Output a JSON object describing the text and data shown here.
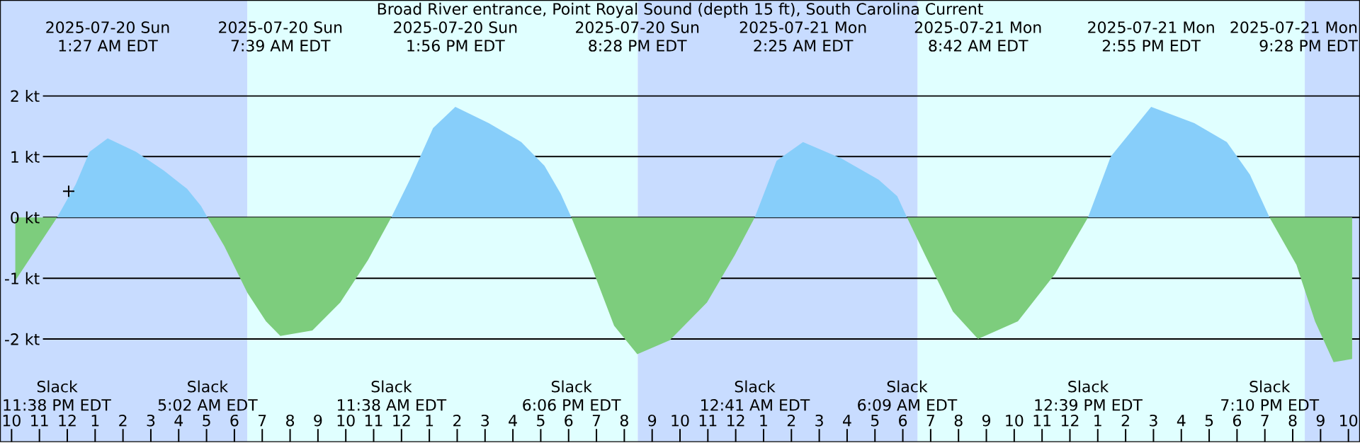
{
  "chart_data": {
    "type": "area",
    "title": "Broad River entrance, Point Royal Sound (depth 15 ft), South Carolina Current",
    "xlim": [
      "2025-07-19T21:36",
      "2025-07-21T22:24"
    ],
    "ylim": [
      -3.69,
      3.57
    ],
    "grid": "y",
    "yticks": [
      {
        "value": 2,
        "label": "2 kt"
      },
      {
        "value": 1,
        "label": "1 kt"
      },
      {
        "value": 0,
        "label": "0 kt"
      },
      {
        "value": -1,
        "label": "-1 kt"
      },
      {
        "value": -2,
        "label": "-2 kt"
      }
    ],
    "xticks": [
      {
        "value": "2025-07-19T22:00",
        "label": "10"
      },
      {
        "value": "2025-07-19T23:00",
        "label": "11"
      },
      {
        "value": "2025-07-20T00:00",
        "label": "12"
      },
      {
        "value": "2025-07-20T01:00",
        "label": "1"
      },
      {
        "value": "2025-07-20T02:00",
        "label": "2"
      },
      {
        "value": "2025-07-20T03:00",
        "label": "3"
      },
      {
        "value": "2025-07-20T04:00",
        "label": "4"
      },
      {
        "value": "2025-07-20T05:00",
        "label": "5"
      },
      {
        "value": "2025-07-20T06:00",
        "label": "6"
      },
      {
        "value": "2025-07-20T07:00",
        "label": "7"
      },
      {
        "value": "2025-07-20T08:00",
        "label": "8"
      },
      {
        "value": "2025-07-20T09:00",
        "label": "9"
      },
      {
        "value": "2025-07-20T10:00",
        "label": "10"
      },
      {
        "value": "2025-07-20T11:00",
        "label": "11"
      },
      {
        "value": "2025-07-20T12:00",
        "label": "12"
      },
      {
        "value": "2025-07-20T13:00",
        "label": "1"
      },
      {
        "value": "2025-07-20T14:00",
        "label": "2"
      },
      {
        "value": "2025-07-20T15:00",
        "label": "3"
      },
      {
        "value": "2025-07-20T16:00",
        "label": "4"
      },
      {
        "value": "2025-07-20T17:00",
        "label": "5"
      },
      {
        "value": "2025-07-20T18:00",
        "label": "6"
      },
      {
        "value": "2025-07-20T19:00",
        "label": "7"
      },
      {
        "value": "2025-07-20T20:00",
        "label": "8"
      },
      {
        "value": "2025-07-20T21:00",
        "label": "9"
      },
      {
        "value": "2025-07-20T22:00",
        "label": "10"
      },
      {
        "value": "2025-07-20T23:00",
        "label": "11"
      },
      {
        "value": "2025-07-21T00:00",
        "label": "12"
      },
      {
        "value": "2025-07-21T01:00",
        "label": "1"
      },
      {
        "value": "2025-07-21T02:00",
        "label": "2"
      },
      {
        "value": "2025-07-21T03:00",
        "label": "3"
      },
      {
        "value": "2025-07-21T04:00",
        "label": "4"
      },
      {
        "value": "2025-07-21T05:00",
        "label": "5"
      },
      {
        "value": "2025-07-21T06:00",
        "label": "6"
      },
      {
        "value": "2025-07-21T07:00",
        "label": "7"
      },
      {
        "value": "2025-07-21T08:00",
        "label": "8"
      },
      {
        "value": "2025-07-21T09:00",
        "label": "9"
      },
      {
        "value": "2025-07-21T10:00",
        "label": "10"
      },
      {
        "value": "2025-07-21T11:00",
        "label": "11"
      },
      {
        "value": "2025-07-21T12:00",
        "label": "12"
      },
      {
        "value": "2025-07-21T13:00",
        "label": "1"
      },
      {
        "value": "2025-07-21T14:00",
        "label": "2"
      },
      {
        "value": "2025-07-21T15:00",
        "label": "3"
      },
      {
        "value": "2025-07-21T16:00",
        "label": "4"
      },
      {
        "value": "2025-07-21T17:00",
        "label": "5"
      },
      {
        "value": "2025-07-21T18:00",
        "label": "6"
      },
      {
        "value": "2025-07-21T19:00",
        "label": "7"
      },
      {
        "value": "2025-07-21T20:00",
        "label": "8"
      },
      {
        "value": "2025-07-21T21:00",
        "label": "9"
      },
      {
        "value": "2025-07-21T22:00",
        "label": "10"
      }
    ],
    "bands": [
      {
        "axis": "x",
        "from": "2025-07-19T21:36",
        "to": "2025-07-20T06:28",
        "color": "#c8dcff"
      },
      {
        "axis": "x",
        "from": "2025-07-20T06:28",
        "to": "2025-07-20T20:29",
        "color": "#e0ffff"
      },
      {
        "axis": "x",
        "from": "2025-07-20T20:29",
        "to": "2025-07-21T06:32",
        "color": "#c8dcff"
      },
      {
        "axis": "x",
        "from": "2025-07-21T06:32",
        "to": "2025-07-21T20:26",
        "color": "#e0ffff"
      },
      {
        "axis": "x",
        "from": "2025-07-21T20:26",
        "to": "2025-07-21T22:24",
        "color": "#c8dcff"
      }
    ],
    "series": [
      {
        "color": "#87cefa",
        "x": [
          "2025-07-19T23:38",
          "2025-07-20T00:18",
          "2025-07-20T00:48",
          "2025-07-20T01:27",
          "2025-07-20T02:28",
          "2025-07-20T03:28",
          "2025-07-20T04:18",
          "2025-07-20T04:48",
          "2025-07-20T05:02",
          "2025-07-20T11:38",
          "2025-07-20T12:18",
          "2025-07-20T13:08",
          "2025-07-20T13:56",
          "2025-07-20T15:08",
          "2025-07-20T16:18",
          "2025-07-20T17:08",
          "2025-07-20T17:43",
          "2025-07-20T18:06",
          "2025-07-21T00:41",
          "2025-07-21T01:28",
          "2025-07-21T02:25",
          "2025-07-21T03:48",
          "2025-07-21T05:08",
          "2025-07-21T05:48",
          "2025-07-21T06:09",
          "2025-07-21T12:39",
          "2025-07-21T13:28",
          "2025-07-21T14:55",
          "2025-07-21T16:28",
          "2025-07-21T17:38",
          "2025-07-21T18:28",
          "2025-07-21T19:10"
        ],
        "values": [
          0,
          0.54,
          1.08,
          1.3,
          1.08,
          0.77,
          0.47,
          0.19,
          0,
          0,
          0.62,
          1.47,
          1.82,
          1.55,
          1.24,
          0.85,
          0.39,
          0,
          0,
          0.93,
          1.24,
          0.97,
          0.62,
          0.35,
          0,
          0,
          1.0,
          1.82,
          1.55,
          1.24,
          0.7,
          0
        ]
      },
      {
        "color": "#7dcd7d",
        "x": [
          "2025-07-19T22:08",
          "2025-07-19T23:38",
          "2025-07-20T05:02",
          "2025-07-20T05:38",
          "2025-07-20T06:28",
          "2025-07-20T07:08",
          "2025-07-20T07:39",
          "2025-07-20T08:48",
          "2025-07-20T09:48",
          "2025-07-20T10:48",
          "2025-07-20T11:38",
          "2025-07-20T18:06",
          "2025-07-20T18:48",
          "2025-07-20T19:38",
          "2025-07-20T20:28",
          "2025-07-20T21:38",
          "2025-07-20T22:58",
          "2025-07-20T23:58",
          "2025-07-21T00:41",
          "2025-07-21T06:09",
          "2025-07-21T06:48",
          "2025-07-21T07:48",
          "2025-07-21T08:42",
          "2025-07-21T10:08",
          "2025-07-21T11:28",
          "2025-07-21T12:39",
          "2025-07-21T19:10",
          "2025-07-21T20:08",
          "2025-07-21T20:48",
          "2025-07-21T21:28",
          "2025-07-21T22:08"
        ],
        "values": [
          -1.04,
          0,
          0,
          -0.47,
          -1.24,
          -1.71,
          -1.95,
          -1.86,
          -1.4,
          -0.7,
          0,
          0,
          -0.78,
          -1.78,
          -2.25,
          -2.02,
          -1.4,
          -0.62,
          0,
          0,
          -0.62,
          -1.55,
          -2.0,
          -1.71,
          -0.93,
          0,
          0,
          -0.78,
          -1.71,
          -2.38,
          -2.33
        ]
      },
      {
        "type": "scatter",
        "marker": "cross",
        "color": "#000000",
        "x": [
          "2025-07-20T00:03"
        ],
        "values": [
          0.43
        ]
      }
    ],
    "annotations": [
      "2025-07-20 Sun",
      "1:27 AM EDT",
      "2025-07-20 Sun",
      "7:39 AM EDT",
      "2025-07-20 Sun",
      "1:56 PM EDT",
      "2025-07-20 Sun",
      "8:28 PM EDT",
      "2025-07-21 Mon",
      "2:25 AM EDT",
      "2025-07-21 Mon",
      "8:42 AM EDT",
      "2025-07-21 Mon",
      "2:55 PM EDT",
      "2025-07-21 Mon",
      "9:28 PM EDT",
      "Slack",
      "11:38 PM EDT",
      "Slack",
      "5:02 AM EDT",
      "Slack",
      "11:38 AM EDT",
      "Slack",
      "6:06 PM EDT",
      "Slack",
      "12:41 AM EDT",
      "Slack",
      "6:09 AM EDT",
      "Slack",
      "12:39 PM EDT",
      "Slack",
      "7:10 PM EDT"
    ]
  }
}
